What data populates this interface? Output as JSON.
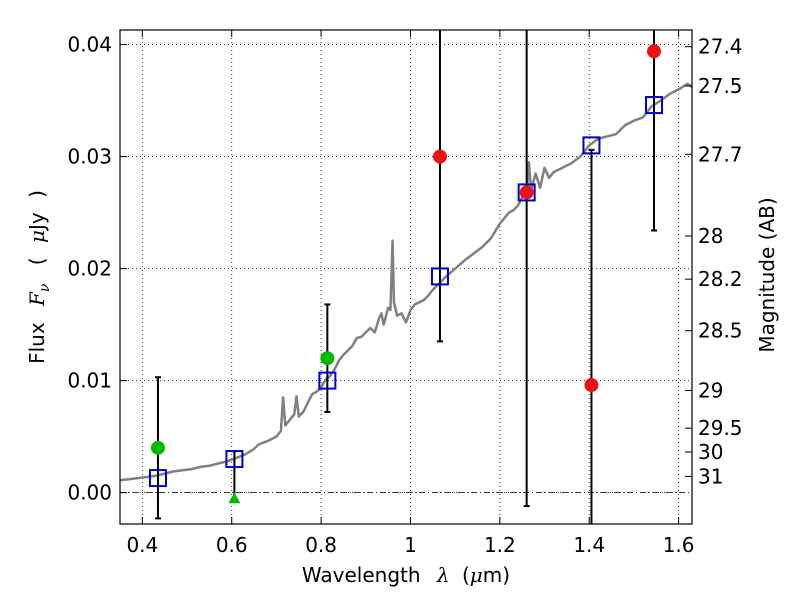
{
  "chart_data": {
    "type": "scatter",
    "xlabel_text": "Wavelength",
    "xlabel_symbol": "λ",
    "xlabel_unit_open": "(",
    "xlabel_unit_mu": "μ",
    "xlabel_unit_rest": "m)",
    "ylabel_text": "Flux",
    "ylabel_symbol": "F",
    "ylabel_sub": "ν",
    "ylabel_unit_open": "(",
    "ylabel_unit_mu": "μ",
    "ylabel_unit_rest": "Jy",
    "ylabel_unit_close": ")",
    "y2label": "Magnitude (AB)",
    "xlim": [
      0.35,
      1.63
    ],
    "ylim": [
      -0.0028,
      0.0413
    ],
    "xticks": [
      0.4,
      0.6,
      0.8,
      1.0,
      1.2,
      1.4,
      1.6
    ],
    "xtick_labels": [
      "0.4",
      "0.6",
      "0.8",
      "1",
      "1.2",
      "1.4",
      "1.6"
    ],
    "yticks": [
      0.0,
      0.01,
      0.02,
      0.03,
      0.04
    ],
    "ytick_labels": [
      "0.00",
      "0.01",
      "0.02",
      "0.03",
      "0.04"
    ],
    "y2ticks": [
      {
        "label": "27.4",
        "mag": 27.4
      },
      {
        "label": "27.5",
        "mag": 27.5
      },
      {
        "label": "27.7",
        "mag": 27.7
      },
      {
        "label": "28",
        "mag": 28.0
      },
      {
        "label": "28.2",
        "mag": 28.2
      },
      {
        "label": "28.5",
        "mag": 28.5
      },
      {
        "label": "29",
        "mag": 29.0
      },
      {
        "label": "29.5",
        "mag": 29.5
      },
      {
        "label": "30",
        "mag": 30.0
      },
      {
        "label": "31",
        "mag": 31.0
      }
    ],
    "grid": true,
    "zero_line": true,
    "colors": {
      "model": "#808080",
      "model_photometry": "#0000cc",
      "optical": "#00bb00",
      "nir": "#ee1111",
      "errorbar": "#000000"
    },
    "series": [
      {
        "name": "model_spectrum",
        "kind": "line",
        "points": [
          [
            0.35,
            0.0011
          ],
          [
            0.37,
            0.0012
          ],
          [
            0.39,
            0.0013
          ],
          [
            0.41,
            0.0014
          ],
          [
            0.43,
            0.0015
          ],
          [
            0.45,
            0.0017
          ],
          [
            0.47,
            0.0019
          ],
          [
            0.49,
            0.002
          ],
          [
            0.51,
            0.0021
          ],
          [
            0.53,
            0.0023
          ],
          [
            0.55,
            0.0024
          ],
          [
            0.57,
            0.0026
          ],
          [
            0.59,
            0.0028
          ],
          [
            0.61,
            0.0031
          ],
          [
            0.63,
            0.0034
          ],
          [
            0.65,
            0.0039
          ],
          [
            0.66,
            0.0043
          ],
          [
            0.68,
            0.0046
          ],
          [
            0.7,
            0.005
          ],
          [
            0.71,
            0.0055
          ],
          [
            0.715,
            0.0085
          ],
          [
            0.72,
            0.006
          ],
          [
            0.73,
            0.0065
          ],
          [
            0.74,
            0.007
          ],
          [
            0.745,
            0.0086
          ],
          [
            0.75,
            0.0068
          ],
          [
            0.76,
            0.0072
          ],
          [
            0.77,
            0.008
          ],
          [
            0.78,
            0.0088
          ],
          [
            0.79,
            0.009
          ],
          [
            0.8,
            0.0094
          ],
          [
            0.81,
            0.0101
          ],
          [
            0.82,
            0.0104
          ],
          [
            0.83,
            0.011
          ],
          [
            0.84,
            0.0118
          ],
          [
            0.85,
            0.0123
          ],
          [
            0.86,
            0.0127
          ],
          [
            0.87,
            0.0131
          ],
          [
            0.88,
            0.0138
          ],
          [
            0.89,
            0.0139
          ],
          [
            0.9,
            0.0143
          ],
          [
            0.91,
            0.0147
          ],
          [
            0.92,
            0.0143
          ],
          [
            0.93,
            0.0156
          ],
          [
            0.935,
            0.016
          ],
          [
            0.94,
            0.015
          ],
          [
            0.95,
            0.0165
          ],
          [
            0.955,
            0.0163
          ],
          [
            0.96,
            0.0225
          ],
          [
            0.963,
            0.017
          ],
          [
            0.97,
            0.0158
          ],
          [
            0.98,
            0.016
          ],
          [
            0.99,
            0.0152
          ],
          [
            1.0,
            0.0163
          ],
          [
            1.01,
            0.0168
          ],
          [
            1.02,
            0.017
          ],
          [
            1.03,
            0.0172
          ],
          [
            1.04,
            0.0176
          ],
          [
            1.05,
            0.0181
          ],
          [
            1.06,
            0.0185
          ],
          [
            1.08,
            0.0193
          ],
          [
            1.1,
            0.02
          ],
          [
            1.12,
            0.0207
          ],
          [
            1.14,
            0.0213
          ],
          [
            1.16,
            0.0219
          ],
          [
            1.18,
            0.0227
          ],
          [
            1.2,
            0.024
          ],
          [
            1.21,
            0.0245
          ],
          [
            1.22,
            0.025
          ],
          [
            1.23,
            0.0252
          ],
          [
            1.24,
            0.0256
          ],
          [
            1.25,
            0.0264
          ],
          [
            1.26,
            0.0268
          ],
          [
            1.265,
            0.0295
          ],
          [
            1.27,
            0.027
          ],
          [
            1.28,
            0.0285
          ],
          [
            1.29,
            0.0272
          ],
          [
            1.3,
            0.029
          ],
          [
            1.31,
            0.0281
          ],
          [
            1.32,
            0.0286
          ],
          [
            1.34,
            0.029
          ],
          [
            1.36,
            0.0294
          ],
          [
            1.38,
            0.03
          ],
          [
            1.4,
            0.031
          ],
          [
            1.42,
            0.0316
          ],
          [
            1.44,
            0.0318
          ],
          [
            1.46,
            0.032
          ],
          [
            1.48,
            0.0328
          ],
          [
            1.5,
            0.0332
          ],
          [
            1.52,
            0.0335
          ],
          [
            1.54,
            0.0345
          ],
          [
            1.56,
            0.035
          ],
          [
            1.58,
            0.0356
          ],
          [
            1.6,
            0.036
          ],
          [
            1.62,
            0.0365
          ],
          [
            1.63,
            0.0362
          ]
        ]
      },
      {
        "name": "model_photometry",
        "kind": "square",
        "points": [
          {
            "x": 0.435,
            "y": 0.0013
          },
          {
            "x": 0.606,
            "y": 0.003
          },
          {
            "x": 0.814,
            "y": 0.01
          },
          {
            "x": 1.066,
            "y": 0.0193
          },
          {
            "x": 1.26,
            "y": 0.0268
          },
          {
            "x": 1.405,
            "y": 0.031
          },
          {
            "x": 1.545,
            "y": 0.0346
          }
        ]
      },
      {
        "name": "optical_detections",
        "kind": "circle",
        "color": "#00bb00",
        "points": [
          {
            "x": 0.435,
            "y": 0.004,
            "err_low": 0.0063,
            "err_high": 0.0063
          },
          {
            "x": 0.814,
            "y": 0.012,
            "err_low": 0.0048,
            "err_high": 0.0048
          }
        ]
      },
      {
        "name": "optical_upper_limit",
        "kind": "triangle",
        "color": "#00bb00",
        "points": [
          {
            "x": 0.606,
            "y": -0.0005,
            "err_low": 0.0,
            "err_high": 0.0042
          }
        ]
      },
      {
        "name": "nir_detections",
        "kind": "circle",
        "color": "#ee1111",
        "points": [
          {
            "x": 1.066,
            "y": 0.03,
            "err_low": 0.0165,
            "err_high": 0.0165
          },
          {
            "x": 1.26,
            "y": 0.0268,
            "err_low": 0.028,
            "err_high": 0.028
          },
          {
            "x": 1.405,
            "y": 0.0096,
            "err_low": 0.021,
            "err_high": 0.021
          },
          {
            "x": 1.545,
            "y": 0.0394,
            "err_low": 0.016,
            "err_high": 0.016
          }
        ]
      }
    ]
  }
}
